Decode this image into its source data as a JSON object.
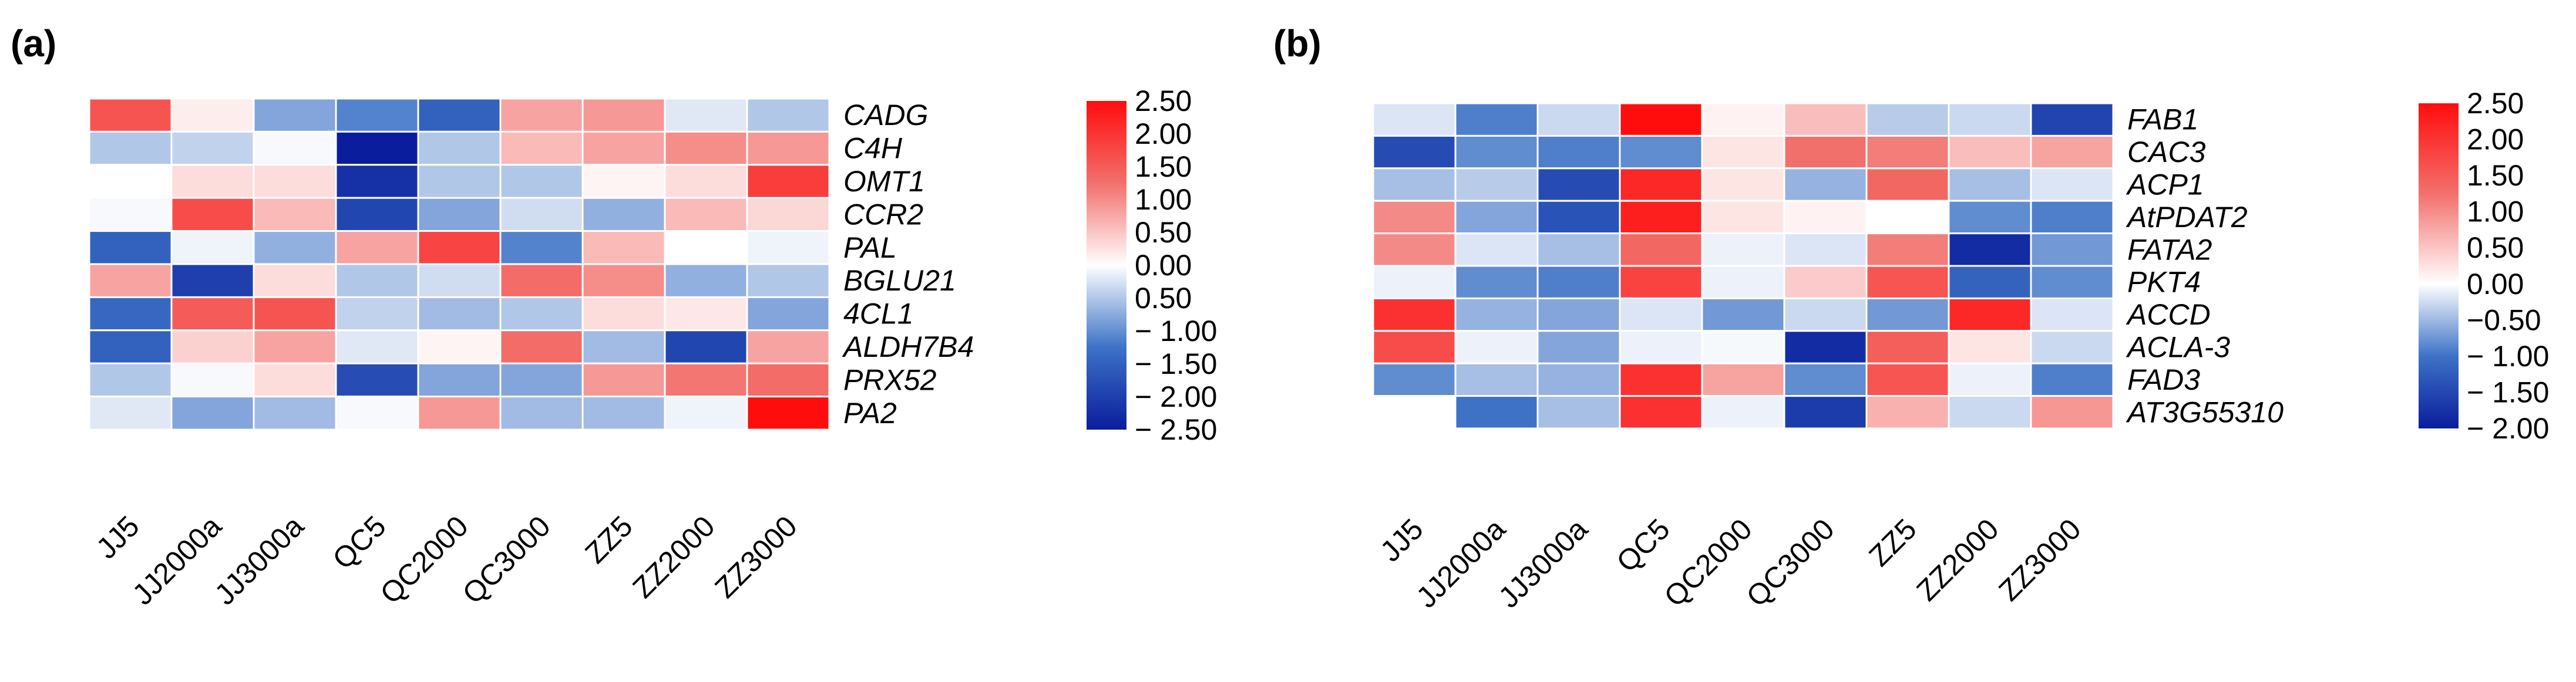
{
  "chart_data": [
    {
      "type": "heatmap",
      "panel_label": "(a)",
      "samples": [
        "JJ5",
        "JJ2000a",
        "JJ3000a",
        "QC5",
        "QC2000",
        "QC3000",
        "ZZ5",
        "ZZ2000",
        "ZZ3000"
      ],
      "genes": [
        "CADG",
        "C4H",
        "OMT1",
        "CCR2",
        "PAL",
        "BGLU21",
        "4CL1",
        "ALDH7B4",
        "PRX52",
        "PA2"
      ],
      "values": [
        [
          1.6,
          0.15,
          -0.8,
          -1.1,
          -1.5,
          0.8,
          0.9,
          -0.2,
          -0.5
        ],
        [
          -0.5,
          -0.4,
          -0.05,
          -2.5,
          -0.5,
          0.6,
          0.8,
          1.0,
          0.9
        ],
        [
          0.0,
          0.3,
          0.3,
          -2.2,
          -0.5,
          -0.5,
          0.1,
          0.3,
          1.9
        ],
        [
          -0.05,
          1.7,
          0.6,
          -1.9,
          -0.8,
          -0.3,
          -0.7,
          0.6,
          0.35
        ],
        [
          -1.5,
          -0.1,
          -0.7,
          0.8,
          1.8,
          -1.1,
          0.6,
          0.0,
          -0.1
        ],
        [
          0.8,
          -2.0,
          0.3,
          -0.5,
          -0.3,
          1.3,
          1.0,
          -0.7,
          -0.5
        ],
        [
          -1.4,
          1.5,
          1.6,
          -0.4,
          -0.6,
          -0.5,
          0.3,
          0.2,
          -0.8
        ],
        [
          -1.5,
          0.4,
          0.8,
          -0.2,
          0.1,
          1.3,
          -0.6,
          -1.9,
          0.8
        ],
        [
          -0.5,
          -0.05,
          0.3,
          -1.8,
          -0.8,
          -0.8,
          0.9,
          1.2,
          1.3
        ],
        [
          -0.2,
          -0.8,
          -0.6,
          -0.05,
          0.9,
          -0.6,
          -0.6,
          -0.1,
          2.5
        ]
      ],
      "colorbar": {
        "min": -2.5,
        "max": 2.5,
        "tick_labels": [
          "2.50",
          "2.00",
          "1.50",
          "1.00",
          "0.50",
          "0.00",
          "0.50",
          "− 1.00",
          "− 1.50",
          "− 2.00",
          "− 2.50"
        ]
      }
    },
    {
      "type": "heatmap",
      "panel_label": "(b)",
      "samples": [
        "JJ5",
        "JJ2000a",
        "JJ3000a",
        "QC5",
        "QC2000",
        "QC3000",
        "ZZ5",
        "ZZ2000",
        "ZZ3000"
      ],
      "genes": [
        "FAB1",
        "CAC3",
        "ACP1",
        "AtPDAT2",
        "FATA2",
        "PKT4",
        "ACCD",
        "ACLA-3",
        "FAD3",
        "AT3G55310"
      ],
      "values": [
        [
          -0.2,
          -1.0,
          -0.3,
          2.4,
          0.1,
          0.5,
          -0.4,
          -0.3,
          -1.7
        ],
        [
          -1.6,
          -0.9,
          -1.0,
          -0.9,
          0.2,
          1.1,
          1.0,
          0.5,
          0.7
        ],
        [
          -0.5,
          -0.4,
          -1.6,
          1.9,
          0.2,
          -0.6,
          1.2,
          -0.5,
          -0.2
        ],
        [
          0.9,
          -0.7,
          -1.5,
          2.0,
          0.2,
          0.1,
          0.0,
          -0.9,
          -1.0
        ],
        [
          0.9,
          -0.2,
          -0.5,
          1.2,
          -0.1,
          -0.2,
          1.0,
          -2.0,
          -0.8
        ],
        [
          -0.1,
          -0.9,
          -1.0,
          1.6,
          -0.1,
          0.4,
          1.4,
          -1.3,
          -0.9
        ],
        [
          1.8,
          -0.6,
          -0.7,
          -0.2,
          -0.8,
          -0.3,
          -0.8,
          1.9,
          -0.2
        ],
        [
          1.5,
          -0.1,
          -0.7,
          -0.1,
          -0.05,
          -2.0,
          1.3,
          0.2,
          -0.3
        ],
        [
          -0.9,
          -0.5,
          -0.6,
          1.8,
          0.7,
          -0.9,
          1.4,
          -0.1,
          -1.0
        ],
        [
          0.0,
          -1.1,
          -0.5,
          1.8,
          -0.1,
          -1.8,
          0.6,
          -0.3,
          0.8
        ]
      ],
      "colorbar": {
        "min": -2.0,
        "max": 2.5,
        "tick_labels": [
          "2.50",
          "2.00",
          "1.50",
          "1.00",
          "0.50",
          "0.00",
          "−0.50",
          "− 1.00",
          "− 1.50",
          "− 2.00"
        ]
      }
    }
  ]
}
